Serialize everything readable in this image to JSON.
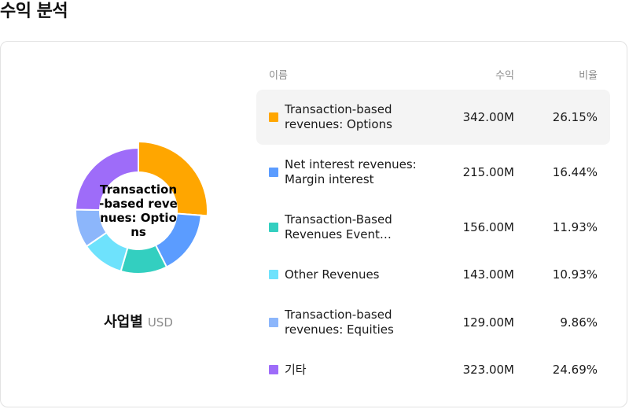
{
  "page": {
    "title": "수익 분석"
  },
  "chart": {
    "center_label": "Transaction-based revenues: Options",
    "caption_title": "사업별",
    "caption_unit": "USD"
  },
  "table": {
    "headers": {
      "name": "이름",
      "value": "수익",
      "ratio": "비율"
    },
    "rows": [
      {
        "name": "Transaction-based revenues: Options",
        "value": "342.00M",
        "ratio": "26.15%",
        "color": "#FFA600",
        "selected": true
      },
      {
        "name": "Net interest revenues: Margin interest",
        "value": "215.00M",
        "ratio": "16.44%",
        "color": "#5B9CFF",
        "selected": false
      },
      {
        "name": "Transaction-Based Revenues Event…",
        "value": "156.00M",
        "ratio": "11.93%",
        "color": "#33CFC0",
        "selected": false
      },
      {
        "name": "Other Revenues",
        "value": "143.00M",
        "ratio": "10.93%",
        "color": "#6EE2FC",
        "selected": false
      },
      {
        "name": "Transaction-based revenues: Equities",
        "value": "129.00M",
        "ratio": "9.86%",
        "color": "#8CB6FB",
        "selected": false
      },
      {
        "name": "기타",
        "value": "323.00M",
        "ratio": "24.69%",
        "color": "#9E6CF9",
        "selected": false
      }
    ]
  },
  "chart_data": {
    "type": "pie",
    "categories": [
      "Transaction-based revenues: Options",
      "Net interest revenues: Margin interest",
      "Transaction-Based Revenues Event…",
      "Other Revenues",
      "Transaction-based revenues: Equities",
      "기타"
    ],
    "values": [
      342.0,
      215.0,
      156.0,
      143.0,
      129.0,
      323.0
    ],
    "percentages": [
      26.15,
      16.44,
      11.93,
      10.93,
      9.86,
      24.69
    ],
    "colors": [
      "#FFA600",
      "#5B9CFF",
      "#33CFC0",
      "#6EE2FC",
      "#8CB6FB",
      "#9E6CF9"
    ],
    "highlighted_index": 0,
    "donut": true
  }
}
